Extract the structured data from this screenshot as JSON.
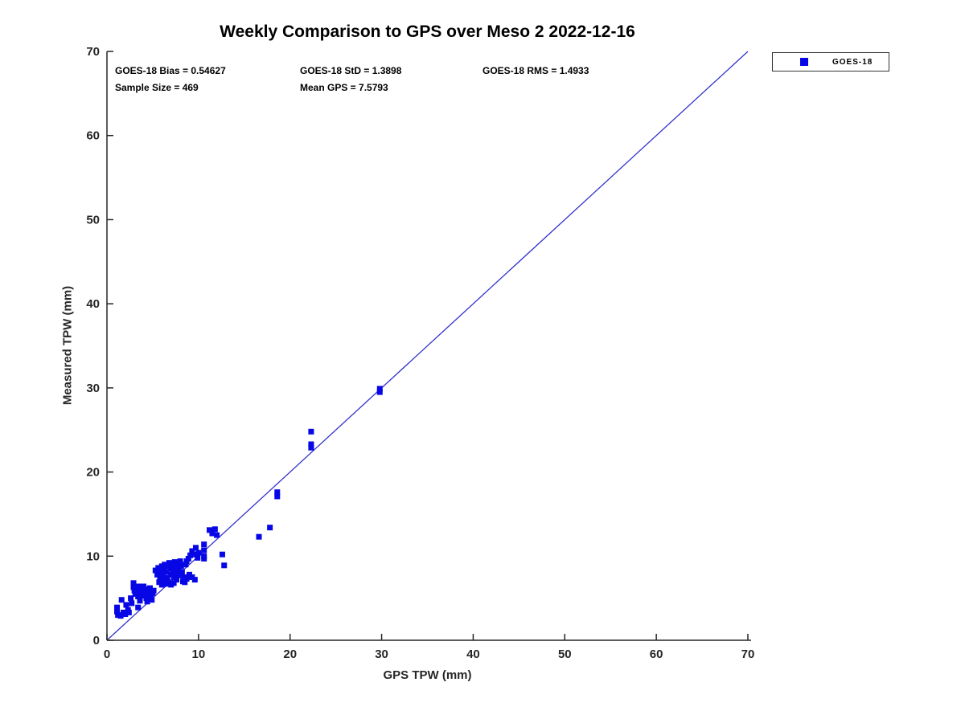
{
  "title": "Weekly Comparison to GPS over Meso 2 2022-12-16",
  "stats": {
    "bias": "GOES-18 Bias = 0.54627",
    "std": "GOES-18 StD = 1.3898",
    "rms": "GOES-18 RMS = 1.4933",
    "sample_size": "Sample Size = 469",
    "mean_gps": "Mean GPS = 7.5793"
  },
  "legend": {
    "label": "GOES-18",
    "marker_color": "#0707e6"
  },
  "colors": {
    "marker": "#0707e6",
    "identity_line": "#3333cc",
    "axis": "#262626",
    "tick_label": "#262626",
    "title_text": "#000000"
  },
  "chart_data": {
    "type": "scatter",
    "title": "Weekly Comparison to GPS over Meso 2 2022-12-16",
    "xlabel": "GPS TPW (mm)",
    "ylabel": "Measured TPW (mm)",
    "xlim": [
      0,
      70
    ],
    "ylim": [
      0,
      70
    ],
    "xticks": [
      0,
      10,
      20,
      30,
      40,
      50,
      60,
      70
    ],
    "yticks": [
      0,
      10,
      20,
      30,
      40,
      50,
      60,
      70
    ],
    "grid": false,
    "legend_position": "outside-top-right",
    "identity_line": {
      "from": [
        0,
        0
      ],
      "to": [
        70,
        70
      ]
    },
    "annotations": [
      "GOES-18 Bias = 0.54627",
      "GOES-18 StD = 1.3898",
      "GOES-18 RMS = 1.4933",
      "Sample Size = 469",
      "Mean GPS = 7.5793"
    ],
    "series": [
      {
        "name": "GOES-18",
        "marker": "square",
        "color": "#0707e6",
        "points": [
          [
            1.1,
            3.9
          ],
          [
            1.1,
            3.4
          ],
          [
            1.2,
            3.0
          ],
          [
            1.5,
            2.9
          ],
          [
            1.6,
            4.8
          ],
          [
            1.8,
            3.3
          ],
          [
            2.0,
            3.1
          ],
          [
            2.1,
            4.2
          ],
          [
            2.3,
            3.6
          ],
          [
            2.4,
            3.3
          ],
          [
            2.6,
            5.0
          ],
          [
            2.7,
            4.4
          ],
          [
            2.9,
            6.8
          ],
          [
            2.9,
            6.3
          ],
          [
            3.0,
            5.9
          ],
          [
            3.1,
            5.5
          ],
          [
            3.2,
            6.2
          ],
          [
            3.4,
            6.4
          ],
          [
            3.4,
            5.2
          ],
          [
            3.5,
            6.0
          ],
          [
            3.6,
            5.6
          ],
          [
            3.6,
            4.7
          ],
          [
            3.4,
            3.9
          ],
          [
            3.8,
            5.9
          ],
          [
            3.9,
            5.3
          ],
          [
            4.0,
            6.4
          ],
          [
            4.1,
            6.1
          ],
          [
            4.2,
            5.6
          ],
          [
            4.3,
            5.0
          ],
          [
            4.4,
            4.6
          ],
          [
            4.5,
            5.8
          ],
          [
            4.6,
            5.4
          ],
          [
            4.7,
            6.2
          ],
          [
            4.8,
            5.1
          ],
          [
            5.0,
            5.6
          ],
          [
            5.1,
            5.9
          ],
          [
            4.9,
            4.8
          ],
          [
            5.3,
            8.3
          ],
          [
            5.5,
            7.8
          ],
          [
            5.6,
            8.6
          ],
          [
            5.7,
            6.9
          ],
          [
            5.8,
            7.4
          ],
          [
            5.9,
            8.0
          ],
          [
            6.0,
            8.8
          ],
          [
            6.0,
            6.6
          ],
          [
            6.1,
            7.7
          ],
          [
            6.2,
            8.4
          ],
          [
            6.3,
            9.0
          ],
          [
            6.3,
            7.1
          ],
          [
            6.4,
            6.7
          ],
          [
            6.5,
            8.1
          ],
          [
            6.6,
            8.8
          ],
          [
            6.6,
            7.4
          ],
          [
            6.7,
            6.9
          ],
          [
            6.8,
            9.2
          ],
          [
            6.9,
            8.5
          ],
          [
            7.0,
            7.8
          ],
          [
            7.0,
            6.6
          ],
          [
            7.1,
            8.9
          ],
          [
            7.2,
            8.2
          ],
          [
            7.3,
            7.5
          ],
          [
            7.3,
            6.8
          ],
          [
            7.4,
            9.3
          ],
          [
            7.5,
            8.7
          ],
          [
            7.6,
            8.0
          ],
          [
            7.6,
            7.2
          ],
          [
            7.7,
            9.0
          ],
          [
            7.8,
            8.4
          ],
          [
            7.9,
            7.7
          ],
          [
            8.0,
            9.4
          ],
          [
            8.1,
            8.8
          ],
          [
            8.2,
            8.1
          ],
          [
            8.3,
            7.0
          ],
          [
            8.4,
            7.5
          ],
          [
            8.5,
            6.9
          ],
          [
            8.6,
            9.0
          ],
          [
            8.7,
            7.3
          ],
          [
            9.0,
            7.8
          ],
          [
            9.3,
            7.5
          ],
          [
            9.6,
            7.2
          ],
          [
            8.7,
            9.4
          ],
          [
            8.9,
            9.7
          ],
          [
            9.1,
            10.1
          ],
          [
            9.3,
            10.6
          ],
          [
            9.7,
            11.0
          ],
          [
            9.7,
            10.2
          ],
          [
            9.9,
            9.8
          ],
          [
            10.0,
            10.4
          ],
          [
            10.6,
            9.7
          ],
          [
            10.6,
            10.0
          ],
          [
            10.6,
            10.7
          ],
          [
            10.6,
            11.4
          ],
          [
            11.2,
            13.1
          ],
          [
            11.8,
            13.2
          ],
          [
            11.5,
            12.7
          ],
          [
            12.0,
            12.5
          ],
          [
            12.6,
            10.2
          ],
          [
            12.8,
            8.9
          ],
          [
            16.6,
            12.3
          ],
          [
            17.8,
            13.4
          ],
          [
            18.6,
            17.1
          ],
          [
            18.6,
            17.6
          ],
          [
            22.3,
            22.9
          ],
          [
            22.3,
            23.3
          ],
          [
            22.3,
            24.8
          ],
          [
            29.8,
            29.5
          ],
          [
            29.8,
            29.9
          ]
        ]
      }
    ]
  }
}
